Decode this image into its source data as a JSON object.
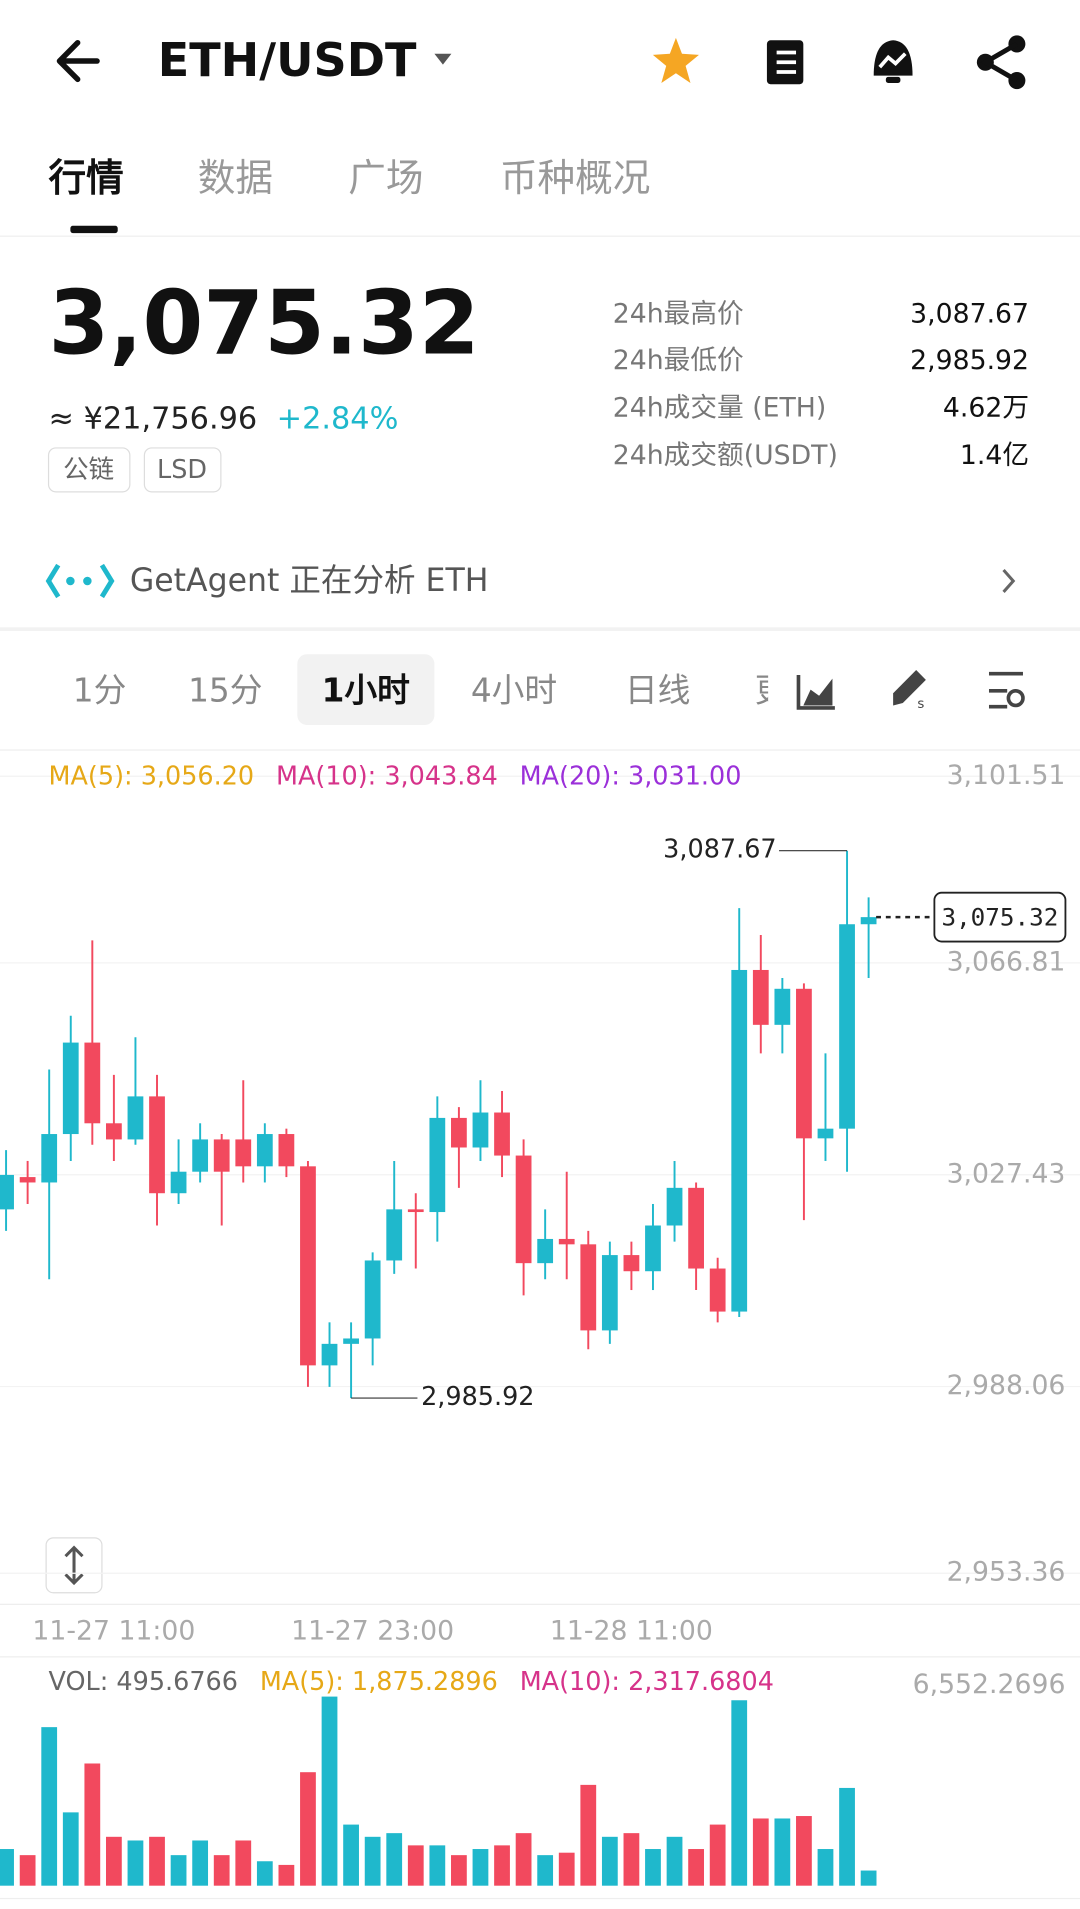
{
  "header": {
    "pair": "ETH/USDT"
  },
  "tabs": [
    "行情",
    "数据",
    "广场",
    "币种概况"
  ],
  "price": {
    "last": "3,075.32",
    "cny": "≈ ¥21,756.96",
    "change": "+2.84%",
    "tags": [
      "公链",
      "LSD"
    ]
  },
  "stats": [
    {
      "label": "24h最高价",
      "value": "3,087.67"
    },
    {
      "label": "24h最低价",
      "value": "2,985.92"
    },
    {
      "label": "24h成交量 (ETH)",
      "value": "4.62万"
    },
    {
      "label": "24h成交额(USDT)",
      "value": "1.4亿"
    }
  ],
  "agent": "GetAgent 正在分析 ETH",
  "intervals": [
    "1分",
    "15分",
    "1小时",
    "4小时",
    "日线",
    "更"
  ],
  "chart_data": [
    {
      "type": "candlestick",
      "legend": [
        {
          "name": "MA(5): 3,056.20",
          "color": "#e6a817"
        },
        {
          "name": "MA(10): 3,043.84",
          "color": "#d6338a"
        },
        {
          "name": "MA(20): 3,031.00",
          "color": "#9b30d9"
        }
      ],
      "up_color": "#1fb8cc",
      "down_color": "#f2495e",
      "categories": [
        null,
        null,
        null,
        null,
        null,
        "11-27 11:00",
        null,
        null,
        null,
        null,
        null,
        null,
        null,
        null,
        null,
        null,
        null,
        "11-27 23:00",
        null,
        null,
        null,
        null,
        null,
        null,
        null,
        null,
        null,
        null,
        null,
        "11-28 11:00",
        null,
        null,
        null,
        null,
        null,
        null,
        null,
        null,
        null,
        null,
        null
      ],
      "open": [
        3021,
        3027,
        3026,
        3035,
        3052,
        3037,
        3034,
        3042,
        3024,
        3028,
        3034,
        3034,
        3029,
        3035,
        3029,
        2992,
        2996,
        2997,
        3011.5,
        3021,
        3020.5,
        3038,
        3032.5,
        3039,
        3031,
        3011,
        3015.5,
        3014.5,
        2998.5,
        3012.5,
        3009.5,
        3018,
        3025,
        3010,
        3002,
        3065.5,
        3055.3,
        3062,
        3034.2,
        3036,
        3074
      ],
      "high": [
        3032,
        3030,
        3047,
        3057,
        3071,
        3046,
        3053,
        3046,
        3034,
        3037,
        3035,
        3045,
        3037,
        3036,
        3030,
        3000,
        3000,
        3013,
        3030,
        3024,
        3042,
        3040,
        3045,
        3043,
        3034,
        3021,
        3028,
        3017,
        3015,
        3015,
        3022,
        3030,
        3026,
        3012,
        3077,
        3072,
        3064,
        3063,
        3050,
        3087.67,
        3079
      ],
      "low": [
        3017,
        3022,
        3008,
        3030,
        3033,
        3030,
        3033,
        3018,
        3022,
        3026,
        3018,
        3026,
        3026,
        3027,
        2988,
        2988,
        2985.92,
        2992,
        3009,
        3010,
        3015,
        3025,
        3030,
        3027,
        3005,
        3008,
        3008,
        2995,
        2996,
        3006,
        3006,
        3015,
        3006,
        3000,
        3001,
        3050,
        3050,
        3019,
        3030,
        3028,
        3064
      ],
      "close": [
        3027.4,
        3026,
        3035,
        3052,
        3037,
        3034,
        3042,
        3024,
        3028,
        3034,
        3028,
        3029,
        3035,
        3029,
        2992,
        2996,
        2997,
        3011.5,
        3021,
        3020.5,
        3038,
        3032.5,
        3039,
        3031,
        3011,
        3015.5,
        3014.5,
        2998.5,
        3012.5,
        3009.5,
        3018,
        3025,
        3010,
        3002,
        3065.5,
        3055.3,
        3062,
        3034.2,
        3036,
        3074,
        3075.32
      ],
      "ylim": [
        2953.36,
        3101.51
      ],
      "yticks": [
        {
          "value": 3101.51,
          "label": "3,101.51"
        },
        {
          "value": 3066.81,
          "label": "3,066.81"
        },
        {
          "value": 3027.43,
          "label": "3,027.43"
        },
        {
          "value": 2988.06,
          "label": "2,988.06"
        },
        {
          "value": 2953.36,
          "label": "2,953.36"
        }
      ],
      "annotations": {
        "high": {
          "value": 3087.67,
          "label": "3,087.67"
        },
        "low": {
          "value": 2985.92,
          "label": "2,985.92"
        },
        "last": {
          "value": 3075.32,
          "label": "3,075.32"
        }
      }
    },
    {
      "type": "bar",
      "legend": [
        {
          "name": "VOL: 495.6766",
          "color": "#666666"
        },
        {
          "name": "MA(5): 1,875.2896",
          "color": "#e6a817"
        },
        {
          "name": "MA(10): 2,317.6804",
          "color": "#d6338a"
        }
      ],
      "values": [
        1200,
        1000,
        5190,
        2400,
        4000,
        1600,
        1480,
        1600,
        1000,
        1480,
        1000,
        1480,
        800,
        680,
        3715,
        6190,
        2000,
        1600,
        1720,
        1320,
        1320,
        1000,
        1200,
        1320,
        1720,
        1000,
        1080,
        3300,
        1600,
        1720,
        1200,
        1600,
        1200,
        2000,
        6070,
        2200,
        2200,
        2280,
        1200,
        3200,
        495.6766
      ],
      "ylim": [
        0,
        6552.2696
      ],
      "yticks": [
        {
          "value": 6552.2696,
          "label": "6,552.2696"
        }
      ]
    }
  ]
}
